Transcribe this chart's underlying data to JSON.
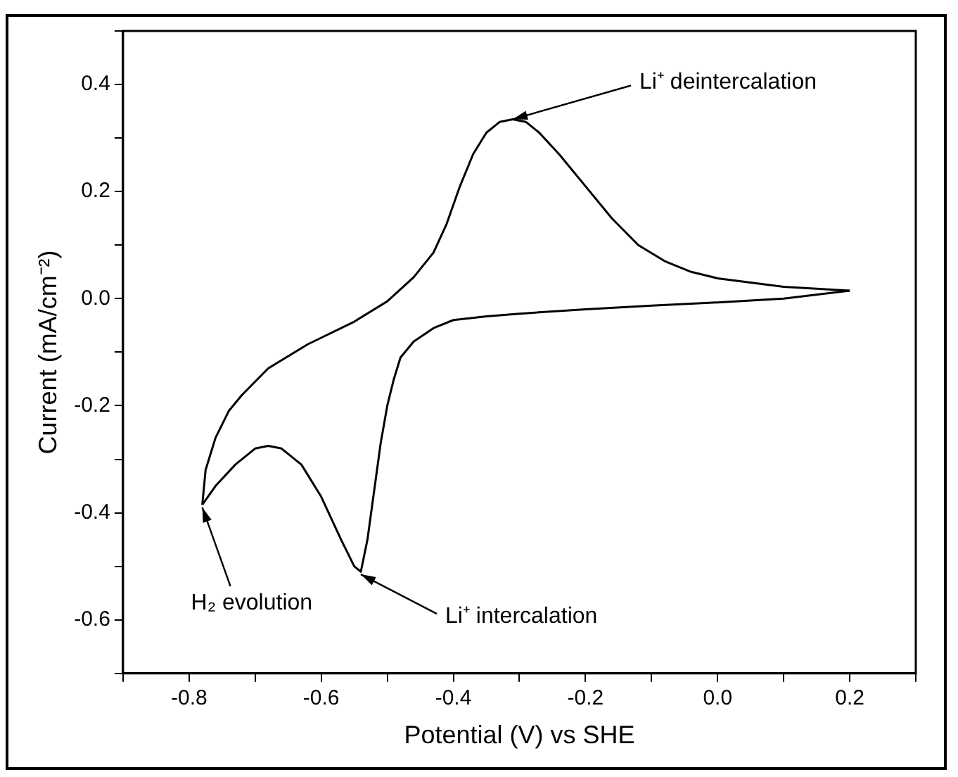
{
  "chart_data": {
    "type": "line",
    "xlabel": "Potential (V) vs SHE",
    "ylabel": "Current (mA/cm⁻²)",
    "xlim": [
      -0.9,
      0.3
    ],
    "ylim": [
      -0.7,
      0.5
    ],
    "xticks": [
      {
        "value": -0.9,
        "label": null
      },
      -0.8,
      {
        "value": -0.7,
        "label": null
      },
      -0.6,
      {
        "value": -0.5,
        "label": null
      },
      -0.4,
      {
        "value": -0.3,
        "label": null
      },
      -0.2,
      {
        "value": -0.1,
        "label": null
      },
      {
        "value": 0,
        "label": "0.0"
      },
      {
        "value": 0.1,
        "label": null
      },
      0.2,
      {
        "value": 0.3,
        "label": null
      }
    ],
    "yticks": [
      {
        "value": -0.7,
        "label": null
      },
      -0.6,
      {
        "value": -0.5,
        "label": null
      },
      -0.4,
      {
        "value": -0.3,
        "label": null
      },
      -0.2,
      {
        "value": -0.1,
        "label": null
      },
      {
        "value": 0,
        "label": "0.0"
      },
      {
        "value": 0.1,
        "label": null
      },
      0.2,
      {
        "value": 0.3,
        "label": null
      },
      0.4,
      {
        "value": 0.5,
        "label": null
      }
    ],
    "grid": false,
    "legend": false,
    "marker": "none",
    "line_style": "solid",
    "series": [
      {
        "color": "#000000",
        "x": [
          0.2,
          0.1,
          0.0,
          -0.1,
          -0.2,
          -0.3,
          -0.35,
          -0.4,
          -0.43,
          -0.46,
          -0.48,
          -0.49,
          -0.5,
          -0.51,
          -0.52,
          -0.53,
          -0.54,
          -0.55,
          -0.57,
          -0.6,
          -0.63,
          -0.66,
          -0.68,
          -0.7,
          -0.73,
          -0.76,
          -0.78
        ],
        "values": [
          0.015,
          0.0,
          -0.007,
          -0.013,
          -0.02,
          -0.028,
          -0.033,
          -0.04,
          -0.055,
          -0.08,
          -0.11,
          -0.15,
          -0.2,
          -0.27,
          -0.36,
          -0.45,
          -0.51,
          -0.5,
          -0.45,
          -0.37,
          -0.31,
          -0.28,
          -0.275,
          -0.28,
          -0.31,
          -0.35,
          -0.385
        ]
      },
      {
        "color": "#000000",
        "x": [
          -0.78,
          -0.775,
          -0.76,
          -0.74,
          -0.72,
          -0.68,
          -0.62,
          -0.55,
          -0.5,
          -0.46,
          -0.43,
          -0.41,
          -0.39,
          -0.37,
          -0.35,
          -0.33,
          -0.31,
          -0.29,
          -0.27,
          -0.24,
          -0.2,
          -0.16,
          -0.12,
          -0.08,
          -0.04,
          0.0,
          0.1,
          0.2
        ],
        "values": [
          -0.385,
          -0.32,
          -0.26,
          -0.21,
          -0.18,
          -0.13,
          -0.085,
          -0.043,
          -0.005,
          0.04,
          0.086,
          0.14,
          0.21,
          0.27,
          0.31,
          0.33,
          0.335,
          0.33,
          0.31,
          0.27,
          0.21,
          0.15,
          0.1,
          0.07,
          0.05,
          0.038,
          0.022,
          0.015
        ]
      }
    ],
    "annotations": [
      {
        "text": "Li⁺ deintercalation",
        "x": -0.31,
        "y": 0.335
      },
      {
        "text": "H₂ evolution",
        "x": -0.78,
        "y": -0.39
      },
      {
        "text": "Li⁺ intercalation",
        "x": -0.54,
        "y": -0.515
      }
    ]
  }
}
